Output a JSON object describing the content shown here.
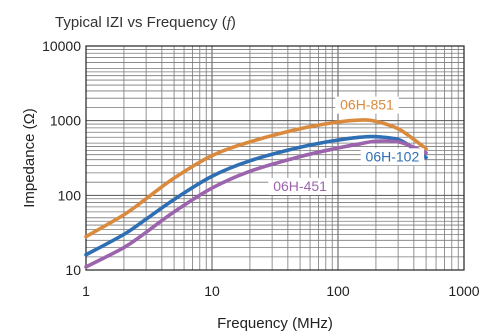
{
  "chart_data": {
    "type": "line",
    "title_prefix": "Typical IZI vs Frequency (",
    "title_italic": "f",
    "title_suffix": ")",
    "xlabel": "Frequency (MHz)",
    "ylabel": "Impedance (Ω)",
    "x_scale": "log",
    "y_scale": "log",
    "xlim": [
      1,
      1000
    ],
    "ylim": [
      10,
      10000
    ],
    "x_ticks": [
      {
        "value": 1,
        "label": "1"
      },
      {
        "value": 10,
        "label": "10"
      },
      {
        "value": 100,
        "label": "100"
      },
      {
        "value": 1000,
        "label": "1000"
      }
    ],
    "y_ticks": [
      {
        "value": 10,
        "label": "10"
      },
      {
        "value": 100,
        "label": "100"
      },
      {
        "value": 1000,
        "label": "1000"
      },
      {
        "value": 10000,
        "label": "10000"
      }
    ],
    "grid": true,
    "series": [
      {
        "name": "06H-851",
        "color": "#d98a3d",
        "label_x": 170,
        "label_y": 1450,
        "points": [
          [
            1,
            28
          ],
          [
            2,
            55
          ],
          [
            3,
            90
          ],
          [
            5,
            170
          ],
          [
            10,
            340
          ],
          [
            20,
            520
          ],
          [
            50,
            780
          ],
          [
            100,
            960
          ],
          [
            150,
            1020
          ],
          [
            200,
            980
          ],
          [
            300,
            780
          ],
          [
            400,
            560
          ],
          [
            500,
            420
          ]
        ]
      },
      {
        "name": "06H-102",
        "color": "#2e6fb3",
        "label_x": 270,
        "label_y": 295,
        "points": [
          [
            1,
            16
          ],
          [
            2,
            30
          ],
          [
            3,
            48
          ],
          [
            5,
            88
          ],
          [
            10,
            180
          ],
          [
            20,
            290
          ],
          [
            50,
            440
          ],
          [
            100,
            550
          ],
          [
            150,
            600
          ],
          [
            200,
            610
          ],
          [
            300,
            560
          ],
          [
            400,
            420
          ],
          [
            500,
            320
          ]
        ]
      },
      {
        "name": "06H-451",
        "color": "#9b64ad",
        "label_x": 50,
        "label_y": 118,
        "points": [
          [
            1,
            11
          ],
          [
            2,
            20
          ],
          [
            3,
            32
          ],
          [
            5,
            60
          ],
          [
            10,
            125
          ],
          [
            20,
            210
          ],
          [
            50,
            330
          ],
          [
            100,
            430
          ],
          [
            150,
            490
          ],
          [
            200,
            530
          ],
          [
            300,
            520
          ],
          [
            400,
            440
          ],
          [
            500,
            370
          ]
        ]
      }
    ]
  }
}
